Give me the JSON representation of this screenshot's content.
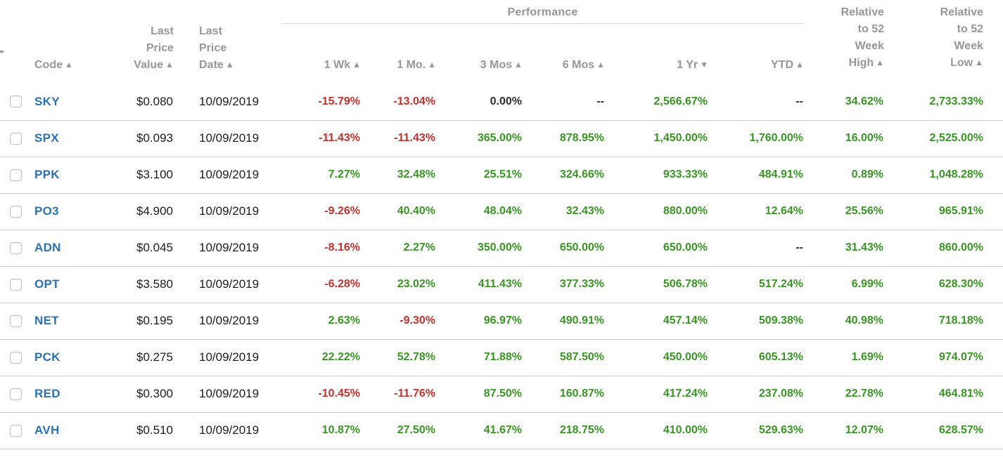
{
  "palette": {
    "pos": "#389623",
    "neg": "#c2312b",
    "neu": "#2e2e2e",
    "code": "#2b72b4",
    "header_text": "#979797",
    "separator": "#cccccc",
    "group_line": "#d9d9d9"
  },
  "header": {
    "performance_group": "Performance",
    "columns": {
      "code": {
        "label": "Code",
        "arrow": "▲"
      },
      "value": {
        "label": "Last\nPrice\nValue",
        "arrow": "▲"
      },
      "date": {
        "label": "Last\nPrice\nDate",
        "arrow": "▲"
      },
      "w1": {
        "label": "1 Wk",
        "arrow": "▲"
      },
      "m1": {
        "label": "1 Mo.",
        "arrow": "▲"
      },
      "m3": {
        "label": "3 Mos",
        "arrow": "▲"
      },
      "m6": {
        "label": "6 Mos",
        "arrow": "▲"
      },
      "y1": {
        "label": "1 Yr",
        "arrow": "▼"
      },
      "ytd": {
        "label": "YTD",
        "arrow": "▲"
      },
      "high": {
        "label": "Relative\nto 52\nWeek\nHigh",
        "arrow": "▲"
      },
      "low": {
        "label": "Relative\nto 52\nWeek\nLow",
        "arrow": "▲"
      }
    }
  },
  "rows": [
    {
      "code": "SKY",
      "value": "$0.080",
      "date": "10/09/2019",
      "w1": "-15.79%",
      "w1_c": "neg",
      "m1": "-13.04%",
      "m1_c": "neg",
      "m3": "0.00%",
      "m3_c": "neu",
      "m6": "--",
      "m6_c": "neu",
      "y1": "2,566.67%",
      "y1_c": "pos",
      "ytd": "--",
      "ytd_c": "neu",
      "high": "34.62%",
      "high_c": "pos",
      "low": "2,733.33%",
      "low_c": "pos"
    },
    {
      "code": "SPX",
      "value": "$0.093",
      "date": "10/09/2019",
      "w1": "-11.43%",
      "w1_c": "neg",
      "m1": "-11.43%",
      "m1_c": "neg",
      "m3": "365.00%",
      "m3_c": "pos",
      "m6": "878.95%",
      "m6_c": "pos",
      "y1": "1,450.00%",
      "y1_c": "pos",
      "ytd": "1,760.00%",
      "ytd_c": "pos",
      "high": "16.00%",
      "high_c": "pos",
      "low": "2,525.00%",
      "low_c": "pos"
    },
    {
      "code": "PPK",
      "value": "$3.100",
      "date": "10/09/2019",
      "w1": "7.27%",
      "w1_c": "pos",
      "m1": "32.48%",
      "m1_c": "pos",
      "m3": "25.51%",
      "m3_c": "pos",
      "m6": "324.66%",
      "m6_c": "pos",
      "y1": "933.33%",
      "y1_c": "pos",
      "ytd": "484.91%",
      "ytd_c": "pos",
      "high": "0.89%",
      "high_c": "pos",
      "low": "1,048.28%",
      "low_c": "pos"
    },
    {
      "code": "PO3",
      "value": "$4.900",
      "date": "10/09/2019",
      "w1": "-9.26%",
      "w1_c": "neg",
      "m1": "40.40%",
      "m1_c": "pos",
      "m3": "48.04%",
      "m3_c": "pos",
      "m6": "32.43%",
      "m6_c": "pos",
      "y1": "880.00%",
      "y1_c": "pos",
      "ytd": "12.64%",
      "ytd_c": "pos",
      "high": "25.56%",
      "high_c": "pos",
      "low": "965.91%",
      "low_c": "pos"
    },
    {
      "code": "ADN",
      "value": "$0.045",
      "date": "10/09/2019",
      "w1": "-8.16%",
      "w1_c": "neg",
      "m1": "2.27%",
      "m1_c": "pos",
      "m3": "350.00%",
      "m3_c": "pos",
      "m6": "650.00%",
      "m6_c": "pos",
      "y1": "650.00%",
      "y1_c": "pos",
      "ytd": "--",
      "ytd_c": "neu",
      "high": "31.43%",
      "high_c": "pos",
      "low": "860.00%",
      "low_c": "pos"
    },
    {
      "code": "OPT",
      "value": "$3.580",
      "date": "10/09/2019",
      "w1": "-6.28%",
      "w1_c": "neg",
      "m1": "23.02%",
      "m1_c": "pos",
      "m3": "411.43%",
      "m3_c": "pos",
      "m6": "377.33%",
      "m6_c": "pos",
      "y1": "506.78%",
      "y1_c": "pos",
      "ytd": "517.24%",
      "ytd_c": "pos",
      "high": "6.99%",
      "high_c": "pos",
      "low": "628.30%",
      "low_c": "pos"
    },
    {
      "code": "NET",
      "value": "$0.195",
      "date": "10/09/2019",
      "w1": "2.63%",
      "w1_c": "pos",
      "m1": "-9.30%",
      "m1_c": "neg",
      "m3": "96.97%",
      "m3_c": "pos",
      "m6": "490.91%",
      "m6_c": "pos",
      "y1": "457.14%",
      "y1_c": "pos",
      "ytd": "509.38%",
      "ytd_c": "pos",
      "high": "40.98%",
      "high_c": "pos",
      "low": "718.18%",
      "low_c": "pos"
    },
    {
      "code": "PCK",
      "value": "$0.275",
      "date": "10/09/2019",
      "w1": "22.22%",
      "w1_c": "pos",
      "m1": "52.78%",
      "m1_c": "pos",
      "m3": "71.88%",
      "m3_c": "pos",
      "m6": "587.50%",
      "m6_c": "pos",
      "y1": "450.00%",
      "y1_c": "pos",
      "ytd": "605.13%",
      "ytd_c": "pos",
      "high": "1.69%",
      "high_c": "pos",
      "low": "974.07%",
      "low_c": "pos"
    },
    {
      "code": "RED",
      "value": "$0.300",
      "date": "10/09/2019",
      "w1": "-10.45%",
      "w1_c": "neg",
      "m1": "-11.76%",
      "m1_c": "neg",
      "m3": "87.50%",
      "m3_c": "pos",
      "m6": "160.87%",
      "m6_c": "pos",
      "y1": "417.24%",
      "y1_c": "pos",
      "ytd": "237.08%",
      "ytd_c": "pos",
      "high": "22.78%",
      "high_c": "pos",
      "low": "464.81%",
      "low_c": "pos"
    },
    {
      "code": "AVH",
      "value": "$0.510",
      "date": "10/09/2019",
      "w1": "10.87%",
      "w1_c": "pos",
      "m1": "27.50%",
      "m1_c": "pos",
      "m3": "41.67%",
      "m3_c": "pos",
      "m6": "218.75%",
      "m6_c": "pos",
      "y1": "410.00%",
      "y1_c": "pos",
      "ytd": "529.63%",
      "ytd_c": "pos",
      "high": "12.07%",
      "high_c": "pos",
      "low": "628.57%",
      "low_c": "pos"
    }
  ]
}
